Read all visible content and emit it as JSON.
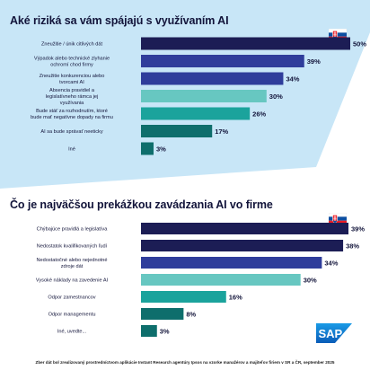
{
  "colors": {
    "navy": "#1c1d55",
    "blue": "#2f3d9b",
    "light_teal": "#67c7c1",
    "teal": "#1ba39c",
    "dark_teal": "#0e6e6c",
    "top_panel": "#c8e6f7",
    "bottom_panel": "#ffffff",
    "label_text": "#12143a",
    "sap_blue": "#0a73c7"
  },
  "chart_data": [
    {
      "type": "bar",
      "orientation": "horizontal",
      "title": "Aké riziká sa vám spájajú s využívaním AI",
      "flag": "slovakia-flag",
      "categories": [
        "Zneužitie / únik citlivých dát",
        "Výpadok alebo technické zlyhanie ochromí chod firmy",
        "Zneužitie konkurenciou alebo tvorcami AI",
        "Absencia pravidiel a legislatívneho rámca jej využívania",
        "Bude stáť za rozhodnutím, ktoré bude mať negatívne dopady na firmu",
        "AI sa bude správať neeticky",
        "Iné"
      ],
      "values": [
        50,
        39,
        34,
        30,
        26,
        17,
        3
      ],
      "value_labels": [
        "50%",
        "39%",
        "34%",
        "30%",
        "26%",
        "17%",
        "3%"
      ],
      "value_unit": "%",
      "xlim": [
        0,
        50
      ],
      "grid": false
    },
    {
      "type": "bar",
      "orientation": "horizontal",
      "title": "Čo je najväčšou prekážkou zavádzania AI vo firme",
      "flag": "slovakia-flag",
      "categories": [
        "Chýbajúce pravidlá a legislatíva",
        "Nedostatok kvalifikovaných ľudí",
        "Nedostatočné alebo nejednotné zdroje dát",
        "Vysoké náklady na zavedenie AI",
        "Odpor zamestnancov",
        "Odpor managementu",
        "Iné, uvedte..."
      ],
      "values": [
        39,
        38,
        34,
        30,
        16,
        8,
        3
      ],
      "value_labels": [
        "39%",
        "38%",
        "34%",
        "30%",
        "16%",
        "8%",
        "3%"
      ],
      "value_unit": "%",
      "xlim": [
        0,
        39
      ],
      "grid": false
    }
  ],
  "footnote": "Zber dát bol zrealizovaný prostredníctvom aplikácie Instant Research agentúry Ipsos na vzorke manažérov a majiteľov firiem v SR a ČR, september 2025",
  "logo": {
    "text": "SAP"
  }
}
